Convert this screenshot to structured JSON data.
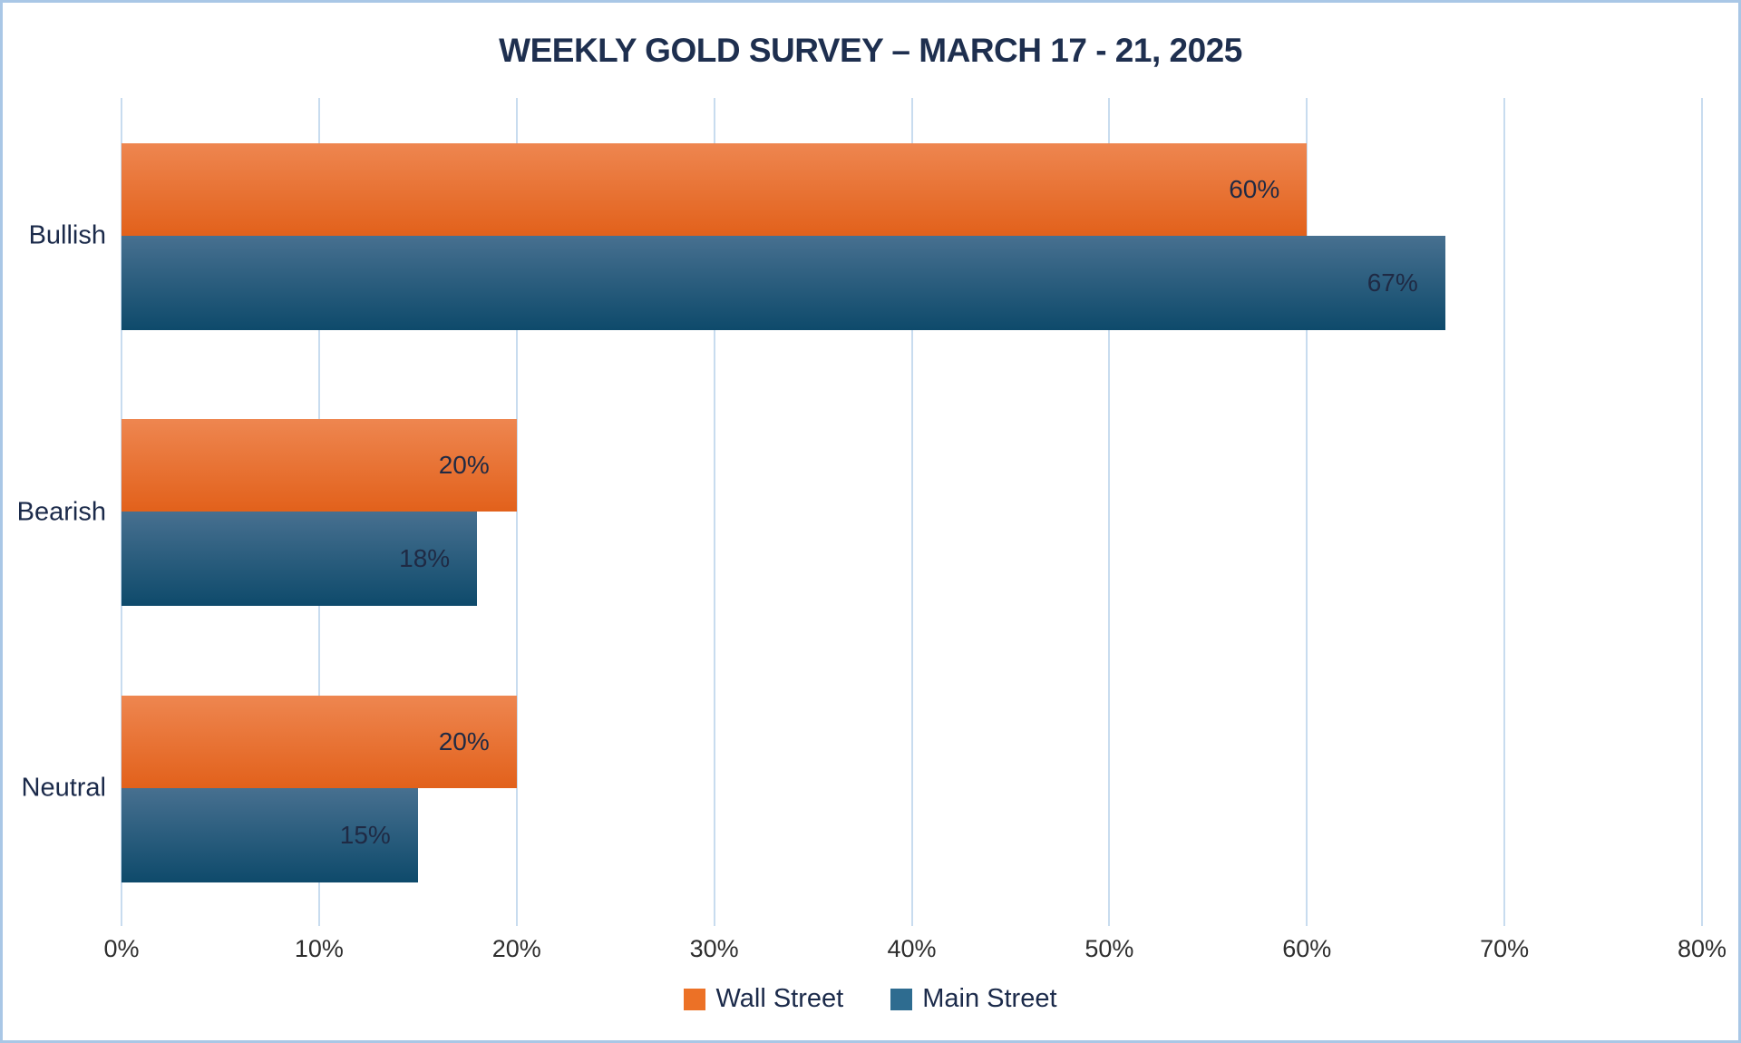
{
  "chart_data": {
    "type": "bar",
    "orientation": "horizontal",
    "title": "WEEKLY GOLD SURVEY – MARCH 17 - 21, 2025",
    "categories": [
      "Bullish",
      "Bearish",
      "Neutral"
    ],
    "series": [
      {
        "name": "Wall Street",
        "values": [
          60,
          20,
          20
        ],
        "value_labels": [
          "60%",
          "20%",
          "20%"
        ],
        "color_top": "#ee8650",
        "color_bottom": "#e2611b",
        "legend_color": "#ec7126"
      },
      {
        "name": "Main Street",
        "values": [
          67,
          18,
          15
        ],
        "value_labels": [
          "67%",
          "18%",
          "15%"
        ],
        "color_top": "#477090",
        "color_bottom": "#0e4a6b",
        "legend_color": "#2e6c90"
      }
    ],
    "x_ticks": [
      "0%",
      "10%",
      "20%",
      "30%",
      "40%",
      "50%",
      "60%",
      "70%",
      "80%"
    ],
    "xlim": [
      0,
      80
    ],
    "grid": "vertical",
    "gridline_color": "#c8dcef",
    "title_color": "#1e2f4f",
    "legend_position": "bottom-center",
    "border_color": "#a9c7e6"
  }
}
